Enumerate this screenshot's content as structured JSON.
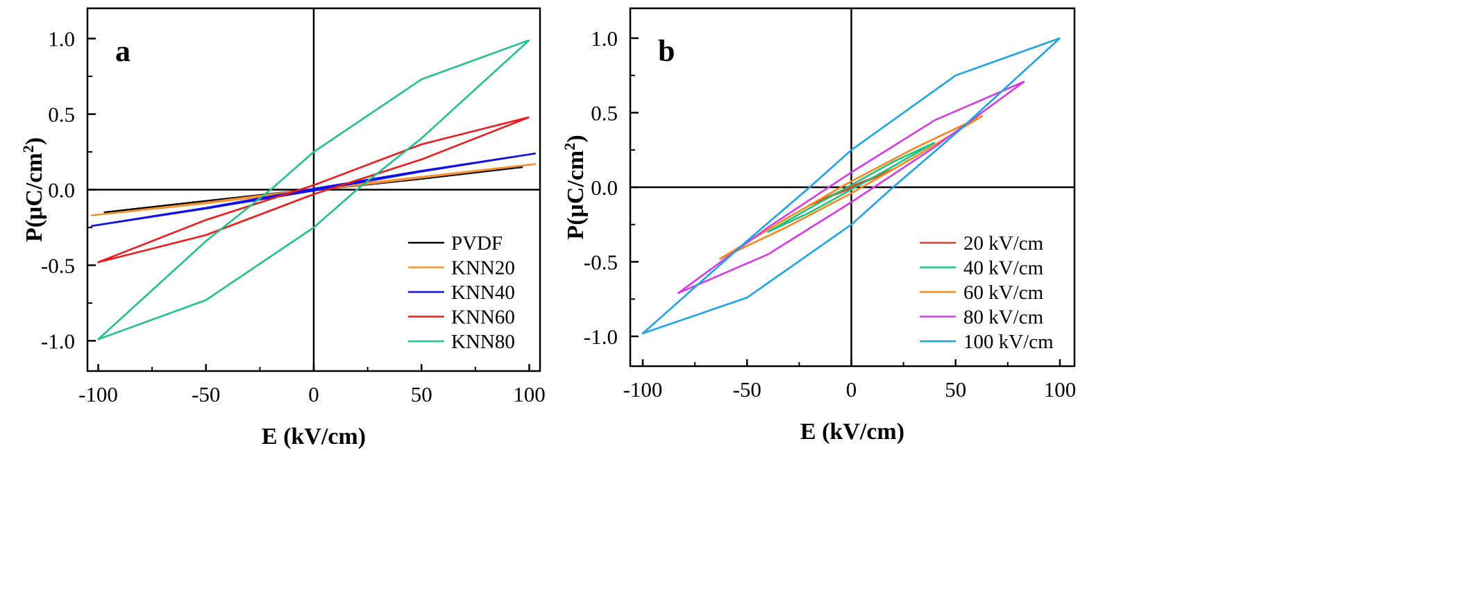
{
  "chart_data": [
    {
      "type": "line",
      "panel_label": "a",
      "xlabel": "E (kV/cm)",
      "ylabel_main": "P(μC/cm",
      "ylabel_sup": "2",
      "ylabel_close": ")",
      "xlim": [
        -105,
        105
      ],
      "ylim": [
        -1.2,
        1.2
      ],
      "xticks": [
        -100,
        -50,
        0,
        50,
        100
      ],
      "xtick_labels": [
        "-100",
        "-50",
        "0",
        "50",
        "100"
      ],
      "yticks": [
        -1.0,
        -0.5,
        0.0,
        0.5,
        1.0
      ],
      "ytick_labels": [
        "-1.0",
        "-0.5",
        "0.0",
        "0.5",
        "1.0"
      ],
      "grid": false,
      "zero_lines": true,
      "legend_position": "bottom-right",
      "series": [
        {
          "name": "PVDF",
          "color": "#000000",
          "upper_branch": [
            [
              97,
              0.15
            ],
            [
              50,
              0.075
            ],
            [
              0,
              0.003
            ],
            [
              -50,
              -0.075
            ],
            [
              -97,
              -0.15
            ]
          ],
          "lower_branch": [
            [
              -97,
              -0.15
            ],
            [
              -50,
              -0.078
            ],
            [
              0,
              -0.003
            ],
            [
              50,
              0.072
            ],
            [
              97,
              0.15
            ]
          ]
        },
        {
          "name": "KNN20",
          "color": "#F39237",
          "upper_branch": [
            [
              103,
              0.17
            ],
            [
              50,
              0.085
            ],
            [
              0,
              0.004
            ],
            [
              -50,
              -0.085
            ],
            [
              -103,
              -0.17
            ]
          ],
          "lower_branch": [
            [
              -103,
              -0.17
            ],
            [
              -50,
              -0.09
            ],
            [
              0,
              -0.004
            ],
            [
              50,
              0.08
            ],
            [
              103,
              0.17
            ]
          ]
        },
        {
          "name": "KNN40",
          "color": "#1010E8",
          "upper_branch": [
            [
              103,
              0.24
            ],
            [
              50,
              0.125
            ],
            [
              0,
              0.006
            ],
            [
              -50,
              -0.12
            ],
            [
              -103,
              -0.24
            ]
          ],
          "lower_branch": [
            [
              -103,
              -0.24
            ],
            [
              -50,
              -0.125
            ],
            [
              0,
              -0.006
            ],
            [
              50,
              0.12
            ],
            [
              103,
              0.24
            ]
          ]
        },
        {
          "name": "KNN60",
          "color": "#F01818",
          "upper_branch": [
            [
              100,
              0.48
            ],
            [
              50,
              0.3
            ],
            [
              0,
              0.03
            ],
            [
              -50,
              -0.2
            ],
            [
              -100,
              -0.48
            ]
          ],
          "lower_branch": [
            [
              -100,
              -0.48
            ],
            [
              -50,
              -0.3
            ],
            [
              0,
              -0.03
            ],
            [
              50,
              0.2
            ],
            [
              100,
              0.48
            ]
          ]
        },
        {
          "name": "KNN80",
          "color": "#1EC38A",
          "upper_branch": [
            [
              100,
              0.99
            ],
            [
              50,
              0.73
            ],
            [
              0,
              0.25
            ],
            [
              -20,
              0.0
            ],
            [
              -50,
              -0.34
            ],
            [
              -100,
              -0.99
            ]
          ],
          "lower_branch": [
            [
              -100,
              -0.99
            ],
            [
              -50,
              -0.73
            ],
            [
              0,
              -0.25
            ],
            [
              20,
              0.0
            ],
            [
              50,
              0.34
            ],
            [
              100,
              0.99
            ]
          ]
        }
      ]
    },
    {
      "type": "line",
      "panel_label": "b",
      "xlabel": "E (kV/cm)",
      "ylabel_main": "P(μC/cm",
      "ylabel_sup": "2",
      "ylabel_close": ")",
      "xlim": [
        -106,
        107
      ],
      "ylim": [
        -1.2,
        1.2
      ],
      "xticks": [
        -100,
        -50,
        0,
        50,
        100
      ],
      "xtick_labels": [
        "-100",
        "-50",
        "0",
        "50",
        "100"
      ],
      "yticks": [
        -1.0,
        -0.5,
        0.0,
        0.5,
        1.0
      ],
      "ytick_labels": [
        "-1.0",
        "-0.5",
        "0.0",
        "0.5",
        "1.0"
      ],
      "grid": false,
      "zero_lines": true,
      "legend_position": "bottom-right",
      "series": [
        {
          "name": "20 kV/cm",
          "color": "#F03A2A",
          "upper_branch": [
            [
              20,
              0.12
            ],
            [
              0,
              0.005
            ],
            [
              -20,
              -0.12
            ]
          ],
          "lower_branch": [
            [
              -20,
              -0.12
            ],
            [
              0,
              -0.005
            ],
            [
              20,
              0.12
            ]
          ]
        },
        {
          "name": "40 kV/cm",
          "color": "#1EC37A",
          "upper_branch": [
            [
              40,
              0.3
            ],
            [
              20,
              0.17
            ],
            [
              0,
              0.015
            ],
            [
              -20,
              -0.14
            ],
            [
              -40,
              -0.3
            ]
          ],
          "lower_branch": [
            [
              -40,
              -0.3
            ],
            [
              -20,
              -0.17
            ],
            [
              0,
              -0.015
            ],
            [
              20,
              0.14
            ],
            [
              40,
              0.3
            ]
          ]
        },
        {
          "name": "60 kV/cm",
          "color": "#F8861A",
          "upper_branch": [
            [
              63,
              0.48
            ],
            [
              30,
              0.26
            ],
            [
              0,
              0.04
            ],
            [
              -30,
              -0.2
            ],
            [
              -63,
              -0.48
            ]
          ],
          "lower_branch": [
            [
              -63,
              -0.48
            ],
            [
              -30,
              -0.26
            ],
            [
              0,
              -0.04
            ],
            [
              30,
              0.2
            ],
            [
              63,
              0.48
            ]
          ]
        },
        {
          "name": "80 kV/cm",
          "color": "#D63AE8",
          "upper_branch": [
            [
              83,
              0.71
            ],
            [
              40,
              0.45
            ],
            [
              0,
              0.1
            ],
            [
              -40,
              -0.27
            ],
            [
              -83,
              -0.71
            ]
          ],
          "lower_branch": [
            [
              -83,
              -0.71
            ],
            [
              -40,
              -0.45
            ],
            [
              0,
              -0.1
            ],
            [
              40,
              0.27
            ],
            [
              83,
              0.71
            ]
          ]
        },
        {
          "name": "100 kV/cm",
          "color": "#1AA3E8",
          "upper_branch": [
            [
              100,
              1.0
            ],
            [
              50,
              0.75
            ],
            [
              0,
              0.25
            ],
            [
              -20,
              0.0
            ],
            [
              -50,
              -0.36
            ],
            [
              -100,
              -0.98
            ]
          ],
          "lower_branch": [
            [
              -100,
              -0.98
            ],
            [
              -50,
              -0.74
            ],
            [
              0,
              -0.25
            ],
            [
              20,
              0.0
            ],
            [
              50,
              0.36
            ],
            [
              100,
              1.0
            ]
          ]
        }
      ]
    }
  ]
}
